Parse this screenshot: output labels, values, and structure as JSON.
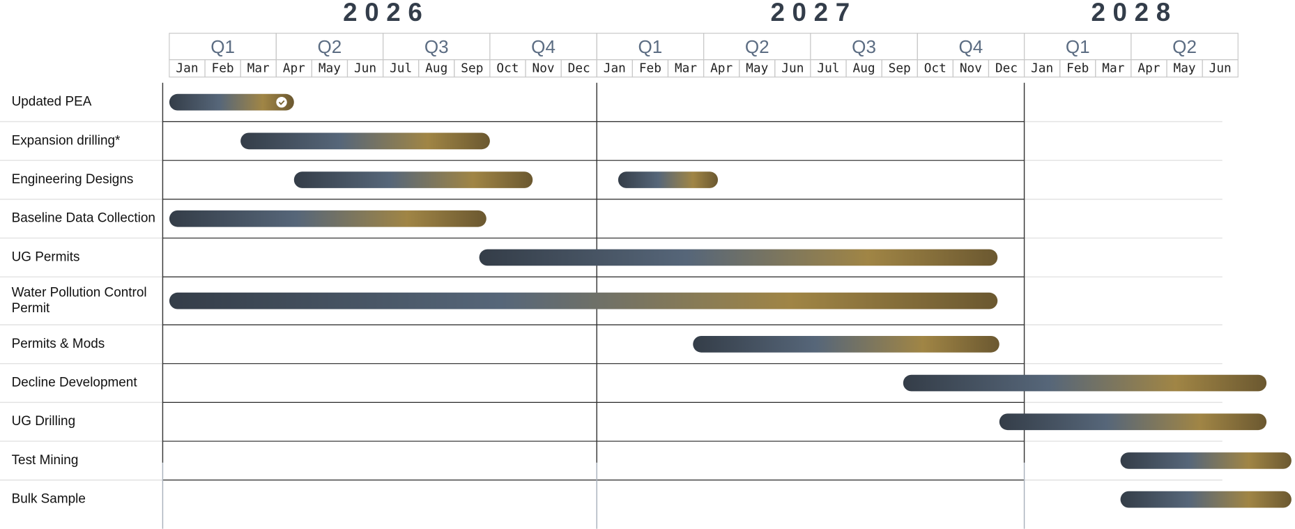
{
  "chart_data": {
    "type": "gantt",
    "years": [
      "2026",
      "2027",
      "2028"
    ],
    "quarters": [
      "Q1",
      "Q2",
      "Q3",
      "Q4",
      "Q1",
      "Q2",
      "Q3",
      "Q4",
      "Q1",
      "Q2"
    ],
    "months": [
      "Jan",
      "Feb",
      "Mar",
      "Apr",
      "May",
      "Jun",
      "Jul",
      "Aug",
      "Sep",
      "Oct",
      "Nov",
      "Dec",
      "Jan",
      "Feb",
      "Mar",
      "Apr",
      "May",
      "Jun",
      "Jul",
      "Aug",
      "Sep",
      "Oct",
      "Nov",
      "Dec",
      "Jan",
      "Feb",
      "Mar",
      "Apr",
      "May",
      "Jun"
    ],
    "xlim": [
      0,
      30
    ],
    "colors": [
      "#343d48",
      "#566679",
      "#a08545",
      "#6b5830"
    ],
    "tasks": [
      {
        "name": "Updated PEA",
        "segments": [
          {
            "start": 0,
            "end": 3.5
          }
        ],
        "completed": true
      },
      {
        "name": "Expansion drilling*",
        "segments": [
          {
            "start": 2,
            "end": 9
          }
        ]
      },
      {
        "name": "Engineering Designs",
        "segments": [
          {
            "start": 3.5,
            "end": 10.2
          },
          {
            "start": 12.6,
            "end": 15.4
          }
        ]
      },
      {
        "name": "Baseline Data Collection",
        "segments": [
          {
            "start": 0,
            "end": 8.9
          }
        ]
      },
      {
        "name": "UG Permits",
        "segments": [
          {
            "start": 8.7,
            "end": 23.25
          }
        ]
      },
      {
        "name": "Water Pollution Control Permit",
        "segments": [
          {
            "start": 0,
            "end": 23.25
          }
        ]
      },
      {
        "name": "Permits & Mods",
        "segments": [
          {
            "start": 14.7,
            "end": 23.3
          }
        ]
      },
      {
        "name": "Decline Development",
        "segments": [
          {
            "start": 20.6,
            "end": 30.8
          }
        ]
      },
      {
        "name": "UG Drilling",
        "segments": [
          {
            "start": 23.3,
            "end": 30.8
          }
        ]
      },
      {
        "name": "Test Mining",
        "segments": [
          {
            "start": 26.7,
            "end": 31.5
          }
        ]
      },
      {
        "name": "Bulk Sample",
        "segments": [
          {
            "start": 26.7,
            "end": 31.5
          }
        ]
      }
    ]
  }
}
